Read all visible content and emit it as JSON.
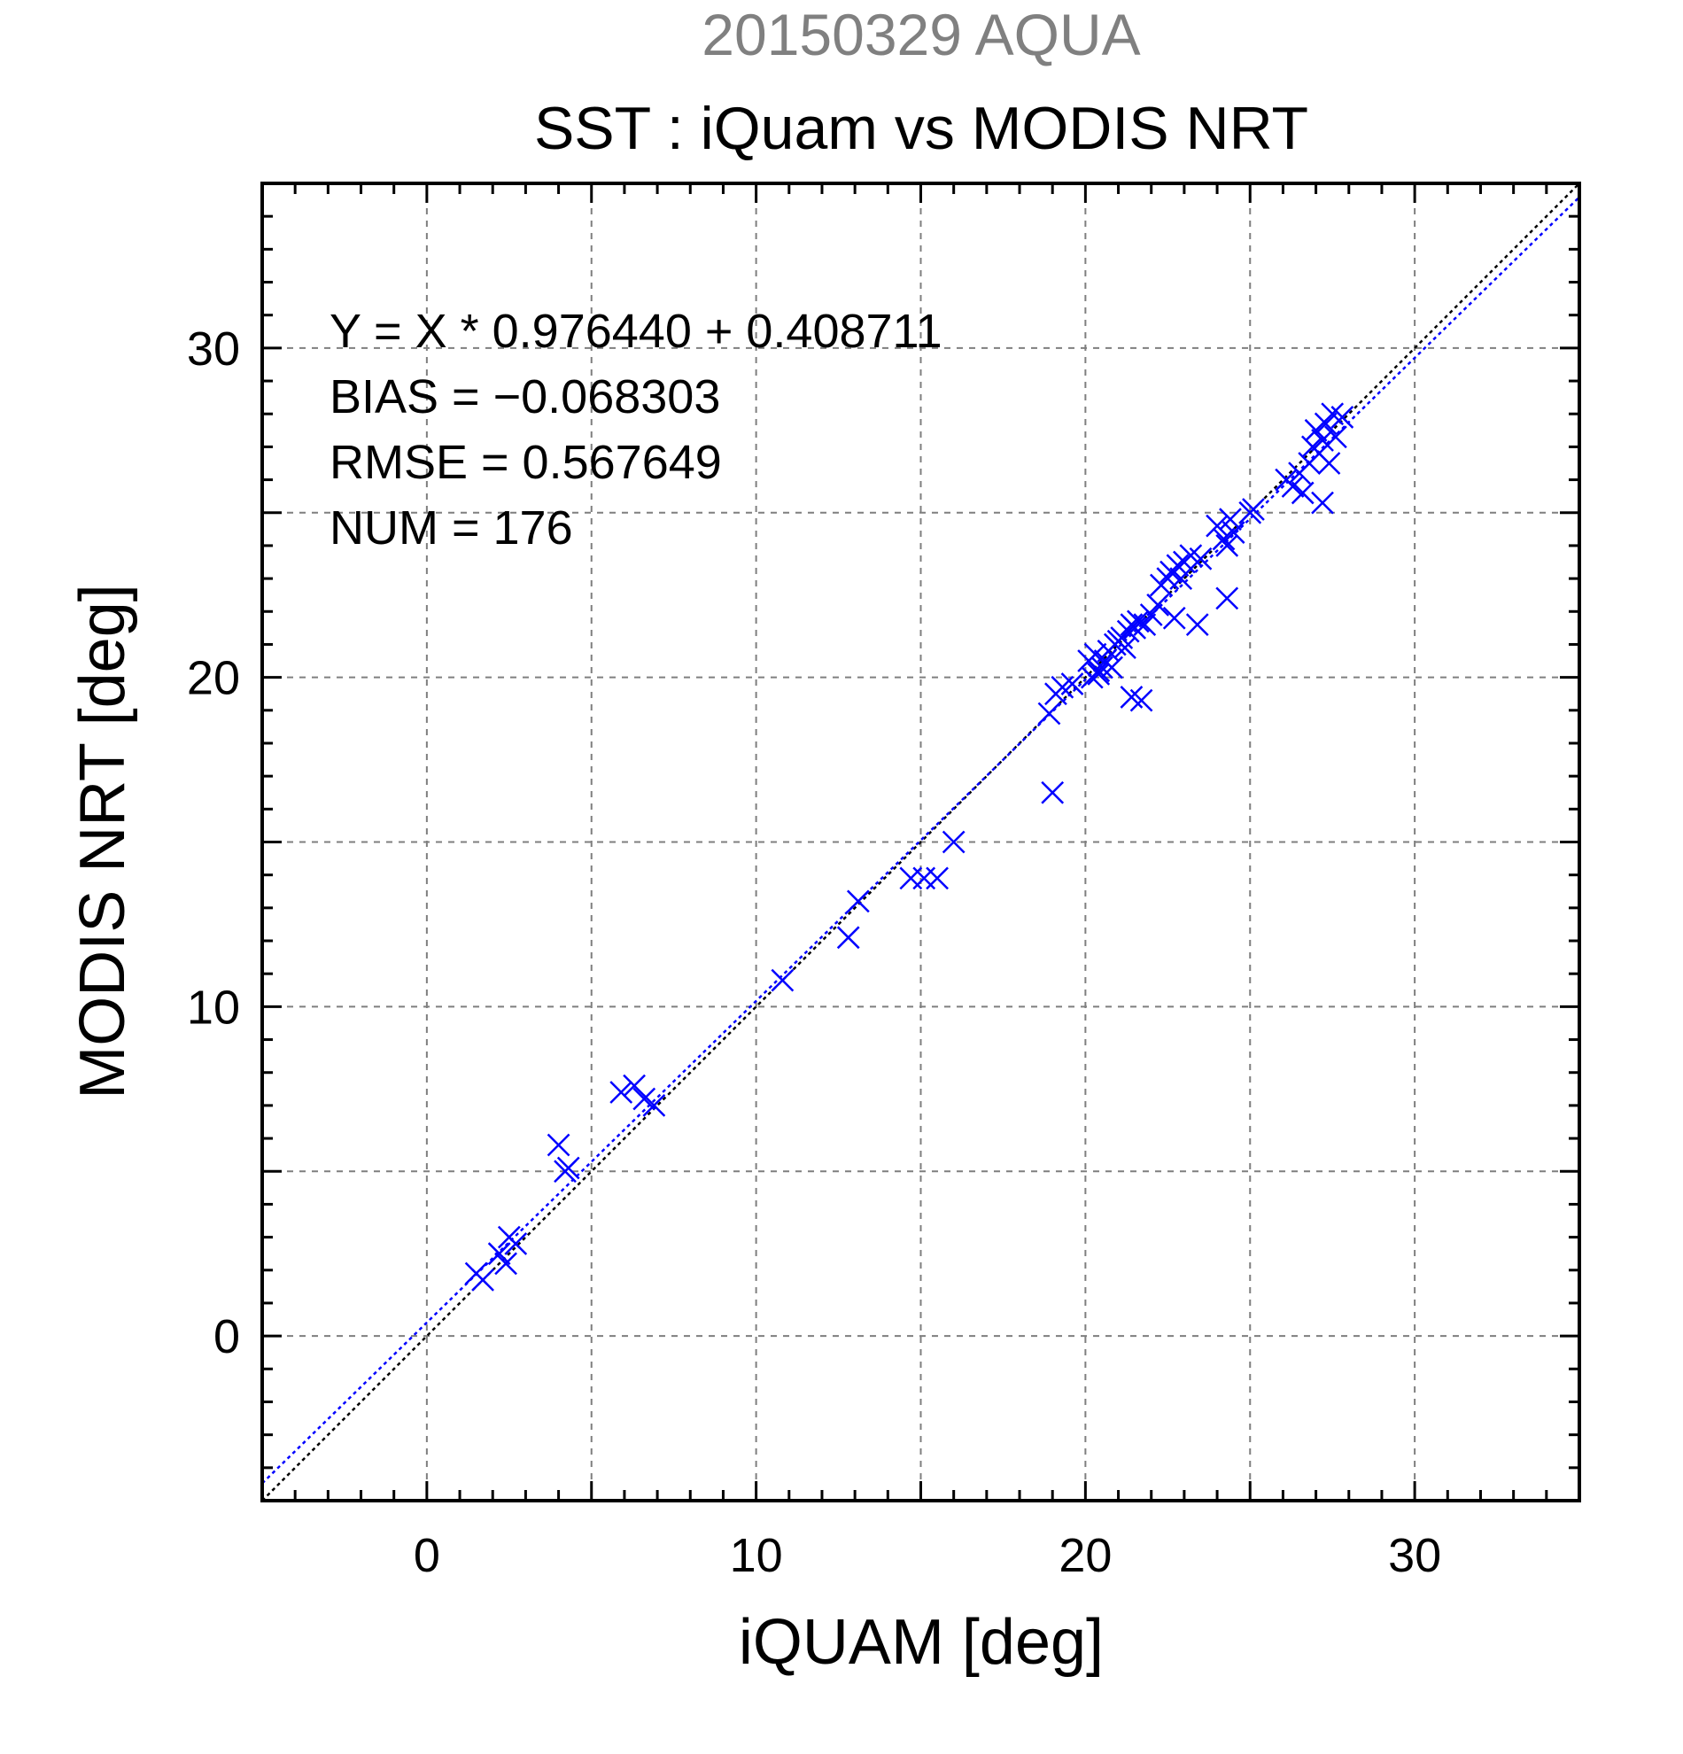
{
  "chart_data": {
    "type": "scatter",
    "supertitle": "20150329 AQUA",
    "title": "SST : iQuam vs MODIS NRT",
    "xlabel": "iQUAM [deg]",
    "ylabel": "MODIS NRT [deg]",
    "xlim": [
      -5,
      35
    ],
    "ylim": [
      -5,
      35
    ],
    "xticks": [
      0,
      10,
      20,
      30
    ],
    "yticks": [
      0,
      10,
      20,
      30
    ],
    "grid": true,
    "stats": [
      "Y = X * 0.976440 + 0.408711",
      "BIAS = −0.068303",
      "RMSE = 0.567649",
      "NUM = 176"
    ],
    "regression": {
      "slope": 0.97644,
      "intercept": 0.408711
    },
    "colors": {
      "points": "#0000ff",
      "fit_line": "#0000ff",
      "identity_line": "#000000",
      "supertitle": "#808080"
    },
    "series": [
      {
        "marker": "x",
        "x": [
          1.5,
          1.7,
          2.2,
          2.4,
          2.5,
          2.7,
          4.0,
          4.2,
          4.3,
          5.9,
          6.3,
          6.6,
          6.9,
          10.8,
          12.8,
          13.1,
          14.7,
          15.1,
          15.5,
          16.0,
          18.9,
          19.0,
          19.1,
          19.3,
          19.6,
          20.1,
          20.2,
          20.3,
          20.4,
          20.5,
          20.6,
          20.7,
          20.8,
          20.9,
          21.0,
          21.1,
          21.2,
          21.3,
          21.4,
          21.5,
          21.6,
          21.8,
          22.0,
          22.2,
          22.3,
          22.5,
          22.6,
          22.8,
          22.9,
          23.0,
          23.2,
          23.5,
          21.4,
          21.7,
          24.0,
          24.2,
          24.3,
          24.5,
          24.4,
          25.0,
          25.1,
          26.1,
          26.3,
          26.5,
          26.6,
          26.8,
          26.9,
          27.0,
          27.1,
          27.2,
          27.3,
          27.4,
          27.5,
          27.6,
          27.8,
          27.2,
          24.3,
          23.4,
          22.7,
          20.4
        ],
        "y": [
          1.9,
          1.7,
          2.5,
          2.2,
          3.0,
          2.8,
          5.8,
          5.0,
          5.1,
          7.4,
          7.6,
          7.2,
          7.0,
          10.8,
          12.1,
          13.2,
          13.9,
          13.9,
          13.9,
          15.0,
          18.9,
          16.5,
          19.5,
          19.7,
          19.8,
          20.5,
          20.0,
          20.7,
          20.1,
          20.3,
          20.5,
          20.8,
          20.3,
          21.0,
          21.1,
          21.2,
          20.9,
          21.4,
          21.6,
          21.5,
          21.7,
          21.6,
          21.9,
          22.2,
          22.8,
          23.0,
          23.2,
          23.4,
          23.0,
          23.5,
          23.7,
          23.6,
          19.4,
          19.3,
          24.6,
          24.2,
          24.0,
          24.4,
          24.8,
          25.0,
          25.1,
          26.0,
          25.8,
          26.2,
          25.6,
          26.5,
          27.0,
          27.5,
          26.8,
          27.2,
          27.7,
          26.5,
          28.0,
          27.3,
          27.9,
          25.3,
          22.4,
          21.6,
          21.8,
          20.2
        ]
      }
    ]
  }
}
